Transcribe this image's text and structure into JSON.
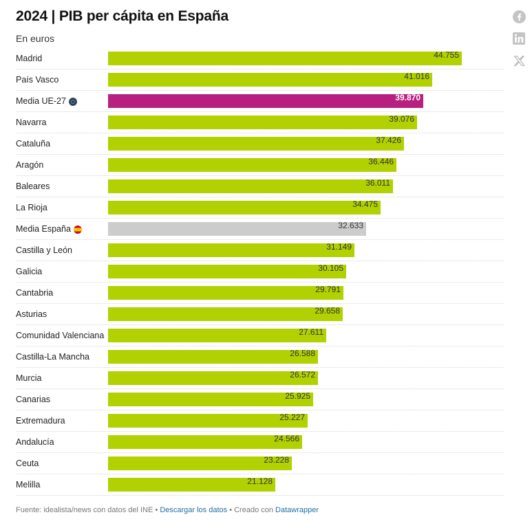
{
  "header": {
    "title": "2024 | PIB per cápita en España",
    "subtitle": "En euros"
  },
  "share": {
    "icons": [
      "facebook-icon",
      "linkedin-icon",
      "x-icon"
    ]
  },
  "colors": {
    "default_bar": "#b1d200",
    "eu_bar": "#b8207f",
    "spain_bar": "#cccccc"
  },
  "chart_data": {
    "type": "bar",
    "orientation": "horizontal",
    "title": "2024 | PIB per cápita en España",
    "subtitle": "En euros",
    "xlim": [
      0,
      44755
    ],
    "grid": false,
    "categories": [
      "Madrid",
      "País Vasco",
      "Media UE-27",
      "Navarra",
      "Cataluña",
      "Aragón",
      "Baleares",
      "La Rioja",
      "Media España",
      "Castilla y León",
      "Galicia",
      "Cantabria",
      "Asturias",
      "Comunidad Valenciana",
      "Castilla-La Mancha",
      "Murcia",
      "Canarias",
      "Extremadura",
      "Andalucía",
      "Ceuta",
      "Melilla"
    ],
    "values": [
      44755,
      41016,
      39870,
      39076,
      37426,
      36446,
      36011,
      34475,
      32633,
      31149,
      30105,
      29791,
      29658,
      27611,
      26588,
      26572,
      25925,
      25227,
      24566,
      23228,
      21128
    ],
    "value_labels": [
      "44.755",
      "41.016",
      "39.870",
      "39.076",
      "37.426",
      "36.446",
      "36.011",
      "34.475",
      "32.633",
      "31.149",
      "30.105",
      "29.791",
      "29.658",
      "27.611",
      "26.588",
      "26.572",
      "25.925",
      "25.227",
      "24.566",
      "23.228",
      "21.128"
    ],
    "highlights": {
      "Media UE-27": "eu",
      "Media España": "spain"
    },
    "label_flags": {
      "Media UE-27": "eu-flag-icon",
      "Media España": "spain-flag-icon"
    }
  },
  "footer": {
    "prefix": "Fuente: idealista/news con datos del INE • ",
    "download_link": "Descargar los datos",
    "middle": " • Creado con ",
    "tool_link": "Datawrapper"
  }
}
